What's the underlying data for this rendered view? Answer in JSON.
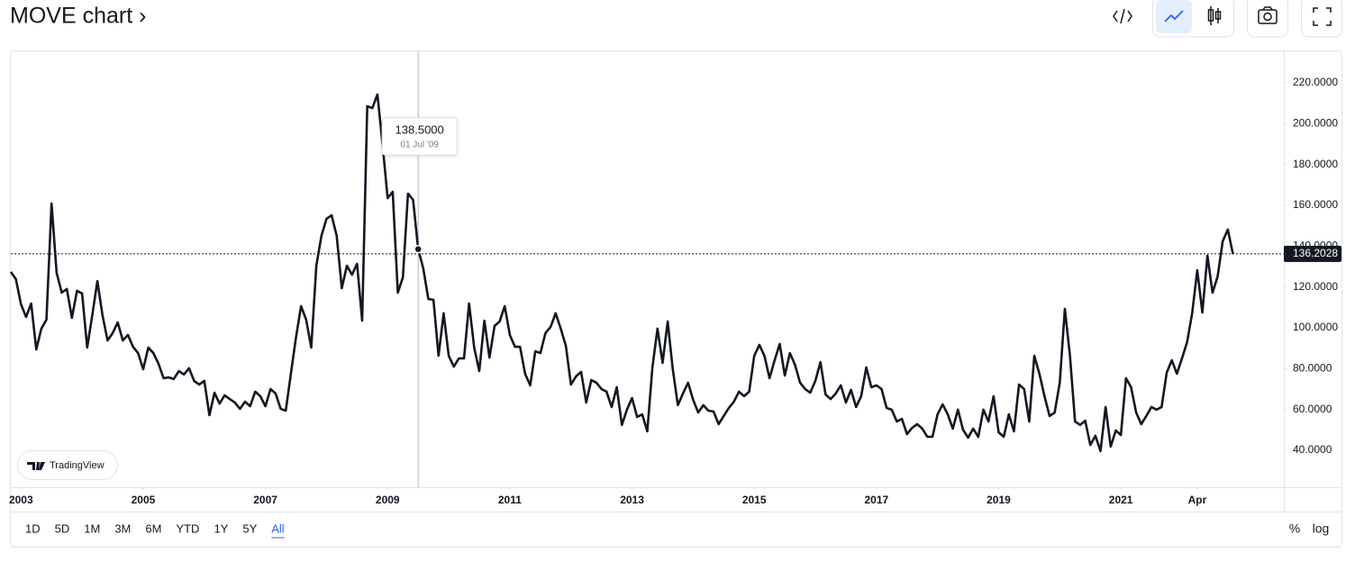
{
  "header": {
    "title": "MOVE chart ›"
  },
  "chart_data": {
    "type": "line",
    "x": [
      "2002-11",
      "2002-12",
      "2003-01",
      "2003-02",
      "2003-03",
      "2003-04",
      "2003-05",
      "2003-06",
      "2003-07",
      "2003-08",
      "2003-09",
      "2003-10",
      "2003-11",
      "2003-12",
      "2004-01",
      "2004-02",
      "2004-03",
      "2004-04",
      "2004-05",
      "2004-06",
      "2004-07",
      "2004-08",
      "2004-09",
      "2004-10",
      "2004-11",
      "2004-12",
      "2005-01",
      "2005-02",
      "2005-03",
      "2005-04",
      "2005-05",
      "2005-06",
      "2005-07",
      "2005-08",
      "2005-09",
      "2005-10",
      "2005-11",
      "2005-12",
      "2006-01",
      "2006-02",
      "2006-03",
      "2006-04",
      "2006-05",
      "2006-06",
      "2006-07",
      "2006-08",
      "2006-09",
      "2006-10",
      "2006-11",
      "2006-12",
      "2007-01",
      "2007-02",
      "2007-03",
      "2007-04",
      "2007-05",
      "2007-06",
      "2007-07",
      "2007-08",
      "2007-09",
      "2007-10",
      "2007-11",
      "2007-12",
      "2008-01",
      "2008-02",
      "2008-03",
      "2008-04",
      "2008-05",
      "2008-06",
      "2008-07",
      "2008-08",
      "2008-09",
      "2008-10",
      "2008-11",
      "2008-12",
      "2009-01",
      "2009-02",
      "2009-03",
      "2009-04",
      "2009-05",
      "2009-06",
      "2009-07",
      "2009-08",
      "2009-09",
      "2009-10",
      "2009-11",
      "2009-12",
      "2010-01",
      "2010-02",
      "2010-03",
      "2010-04",
      "2010-05",
      "2010-06",
      "2010-07",
      "2010-08",
      "2010-09",
      "2010-10",
      "2010-11",
      "2010-12",
      "2011-01",
      "2011-02",
      "2011-03",
      "2011-04",
      "2011-05",
      "2011-06",
      "2011-07",
      "2011-08",
      "2011-09",
      "2011-10",
      "2011-11",
      "2011-12",
      "2012-01",
      "2012-02",
      "2012-03",
      "2012-04",
      "2012-05",
      "2012-06",
      "2012-07",
      "2012-08",
      "2012-09",
      "2012-10",
      "2012-11",
      "2012-12",
      "2013-01",
      "2013-02",
      "2013-03",
      "2013-04",
      "2013-05",
      "2013-06",
      "2013-07",
      "2013-08",
      "2013-09",
      "2013-10",
      "2013-11",
      "2013-12",
      "2014-01",
      "2014-02",
      "2014-03",
      "2014-04",
      "2014-05",
      "2014-06",
      "2014-07",
      "2014-08",
      "2014-09",
      "2014-10",
      "2014-11",
      "2014-12",
      "2015-01",
      "2015-02",
      "2015-03",
      "2015-04",
      "2015-05",
      "2015-06",
      "2015-07",
      "2015-08",
      "2015-09",
      "2015-10",
      "2015-11",
      "2015-12",
      "2016-01",
      "2016-02",
      "2016-03",
      "2016-04",
      "2016-05",
      "2016-06",
      "2016-07",
      "2016-08",
      "2016-09",
      "2016-10",
      "2016-11",
      "2016-12",
      "2017-01",
      "2017-02",
      "2017-03",
      "2017-04",
      "2017-05",
      "2017-06",
      "2017-07",
      "2017-08",
      "2017-09",
      "2017-10",
      "2017-11",
      "2017-12",
      "2018-01",
      "2018-02",
      "2018-03",
      "2018-04",
      "2018-05",
      "2018-06",
      "2018-07",
      "2018-08",
      "2018-09",
      "2018-10",
      "2018-11",
      "2018-12",
      "2019-01",
      "2019-02",
      "2019-03",
      "2019-04",
      "2019-05",
      "2019-06",
      "2019-07",
      "2019-08",
      "2019-09",
      "2019-10",
      "2019-11",
      "2019-12",
      "2020-01",
      "2020-02",
      "2020-03",
      "2020-04",
      "2020-05",
      "2020-06",
      "2020-07",
      "2020-08",
      "2020-09",
      "2020-10",
      "2020-11",
      "2020-12",
      "2021-01",
      "2021-02",
      "2021-03",
      "2021-04",
      "2021-05",
      "2021-06",
      "2021-07",
      "2021-08",
      "2021-09",
      "2021-10",
      "2021-11",
      "2021-12",
      "2022-01",
      "2022-02",
      "2022-03",
      "2022-04",
      "2022-05",
      "2022-06",
      "2022-07",
      "2022-08",
      "2022-09",
      "2022-10",
      "2022-11"
    ],
    "series": [
      {
        "name": "MOVE",
        "color": "#131722",
        "values": [
          127.4,
          123.8,
          111.5,
          105.3,
          111.9,
          89.4,
          99.6,
          104,
          160.9,
          126.9,
          117.2,
          119,
          104.9,
          118.1,
          116.8,
          90.3,
          106.2,
          122.9,
          106.2,
          93.8,
          97.4,
          102.6,
          93.8,
          96.5,
          90.7,
          87.6,
          79.7,
          90.3,
          87.6,
          82.4,
          75.3,
          75.7,
          74.9,
          78.8,
          77.1,
          80.2,
          74,
          72.2,
          74,
          57.2,
          68.2,
          62.9,
          66.9,
          65.1,
          63.4,
          60.3,
          63.8,
          61.6,
          68.7,
          66.5,
          61.6,
          70,
          67.8,
          60.3,
          59.4,
          77.5,
          95.2,
          110.6,
          104,
          90.3,
          130.4,
          145,
          153.4,
          155.1,
          145,
          119.4,
          130.4,
          126,
          131.3,
          103.5,
          208.5,
          207.6,
          214.3,
          190,
          163.5,
          166.6,
          117.2,
          124.7,
          165.7,
          162.7,
          138.5,
          129.1,
          114.1,
          113.7,
          86.3,
          107.1,
          86.3,
          81,
          85,
          85,
          111.9,
          90.3,
          78.8,
          103.5,
          85.4,
          100.9,
          103.1,
          110.6,
          96.5,
          90.7,
          90.7,
          77.5,
          71.8,
          88.5,
          87.6,
          97.4,
          100.4,
          107.1,
          99.6,
          91.2,
          72.2,
          76.2,
          78.4,
          63.4,
          74.4,
          73.1,
          70,
          68.7,
          61.2,
          70.9,
          52.4,
          59.9,
          65.6,
          56.3,
          57.6,
          49.3,
          80.6,
          99.6,
          82.8,
          103.1,
          79.7,
          62.1,
          67.8,
          73.1,
          64.7,
          58.5,
          62.1,
          59.4,
          59,
          52.8,
          56.8,
          60.7,
          63.8,
          68.7,
          66.5,
          68.7,
          86.3,
          91.6,
          86.3,
          75.3,
          84.1,
          92.1,
          76.6,
          87.6,
          81.9,
          73.1,
          70,
          68.2,
          74,
          83.2,
          67.3,
          65.1,
          67.8,
          71.8,
          63.4,
          69.6,
          61.2,
          66.5,
          80.6,
          70.9,
          71.8,
          70,
          60.7,
          59.9,
          54.1,
          55.4,
          47.9,
          51,
          52.8,
          50.6,
          46.6,
          46.6,
          57.6,
          62.5,
          57.6,
          50.6,
          59.9,
          50.1,
          46.2,
          50.6,
          46.6,
          59.9,
          54.1,
          66.5,
          48.8,
          46.6,
          57.6,
          49.3,
          72.2,
          70,
          54.1,
          86.3,
          77.5,
          66.5,
          56.8,
          58.5,
          73.1,
          109.3,
          86.3,
          54.1,
          52.4,
          54.5,
          42.6,
          47.1,
          39.6,
          61.2,
          41.8,
          49.7,
          47.5,
          75.3,
          70.9,
          58.5,
          52.8,
          56.8,
          61.2,
          59.9,
          61.2,
          78,
          84.1,
          77.5,
          85,
          92.9,
          107.1,
          128.2,
          107.5,
          135.3,
          117.2,
          125.1,
          142.4,
          148.1,
          136.2028
        ]
      }
    ],
    "xlim": [
      "2002-11",
      "2023-09"
    ],
    "xticks": [
      {
        "value": "2003-01",
        "label": "2003"
      },
      {
        "value": "2005-01",
        "label": "2005"
      },
      {
        "value": "2007-01",
        "label": "2007"
      },
      {
        "value": "2009-01",
        "label": "2009"
      },
      {
        "value": "2011-01",
        "label": "2011"
      },
      {
        "value": "2013-01",
        "label": "2013"
      },
      {
        "value": "2015-01",
        "label": "2015"
      },
      {
        "value": "2017-01",
        "label": "2017"
      },
      {
        "value": "2019-01",
        "label": "2019"
      },
      {
        "value": "2021-01",
        "label": "2021"
      },
      {
        "value": "2022-04",
        "label": "Apr"
      }
    ],
    "ylim": [
      21.9,
      235.4
    ],
    "yticks": [
      {
        "value": 40,
        "label": "40.0000"
      },
      {
        "value": 60,
        "label": "60.0000"
      },
      {
        "value": 80,
        "label": "80.0000"
      },
      {
        "value": 100,
        "label": "100.0000"
      },
      {
        "value": 120,
        "label": "120.0000"
      },
      {
        "value": 140,
        "label": "140.0000"
      },
      {
        "value": 160,
        "label": "160.0000"
      },
      {
        "value": 180,
        "label": "180.0000"
      },
      {
        "value": 200,
        "label": "200.0000"
      },
      {
        "value": 220,
        "label": "220.0000"
      }
    ],
    "log_scale": false,
    "crosshair": {
      "x": "2009-07",
      "value": 138.5,
      "value_label": "138.5000",
      "date_label": "01 Jul '09"
    },
    "last_price": {
      "value": 136.2028,
      "label": "136.2028"
    }
  },
  "branding": "TradingView",
  "footer": {
    "ranges": [
      "1D",
      "5D",
      "1M",
      "3M",
      "6M",
      "YTD",
      "1Y",
      "5Y",
      "All"
    ],
    "active_range": "All",
    "percent_label": "%",
    "log_label": "log"
  }
}
